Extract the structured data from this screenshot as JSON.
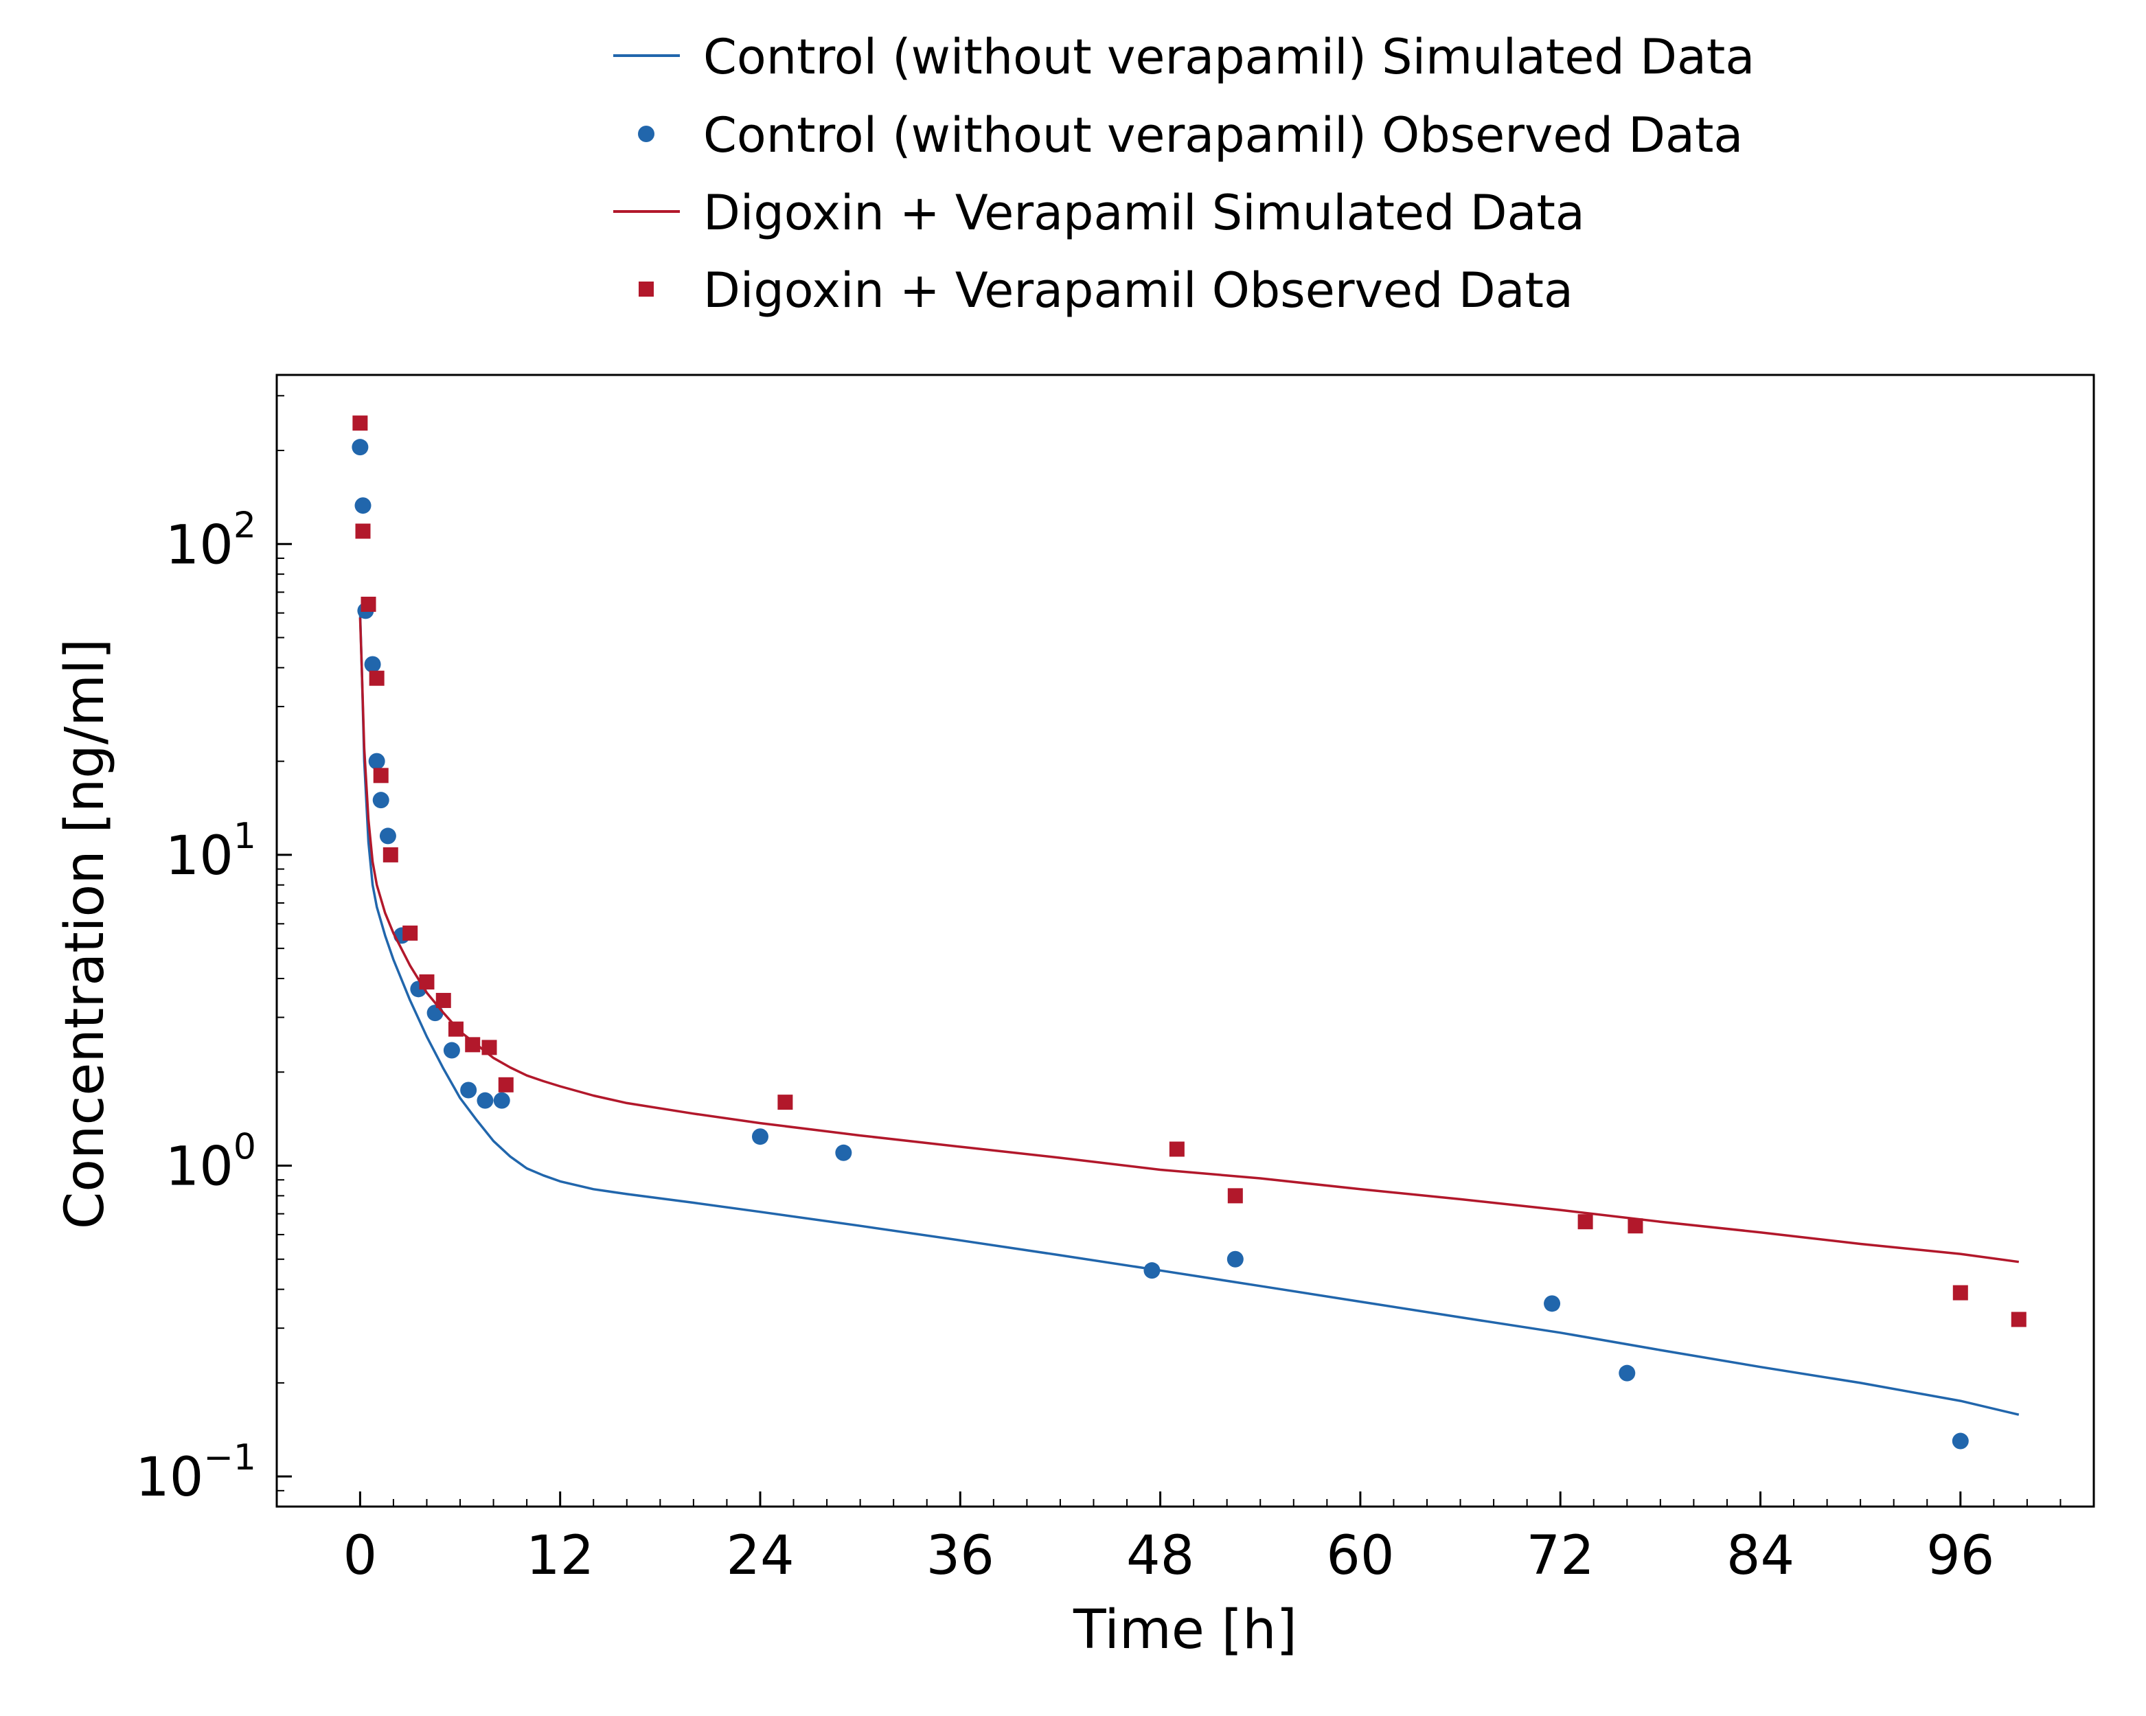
{
  "chart_data": {
    "type": "scatter",
    "xlabel": "Time [h]",
    "ylabel": "Concentration [ng/ml]",
    "xlim": [
      -5,
      104
    ],
    "ylim": [
      0.08,
      350
    ],
    "y_scale": "log",
    "x_ticks": [
      0,
      12,
      24,
      36,
      48,
      60,
      72,
      84,
      96
    ],
    "x_tick_labels": [
      "0",
      "12",
      "24",
      "36",
      "48",
      "60",
      "72",
      "84",
      "96"
    ],
    "y_ticks": [
      0.1,
      1,
      10,
      100
    ],
    "y_tick_labels": [
      {
        "base": "10",
        "exp": "−1"
      },
      {
        "base": "10",
        "exp": "0"
      },
      {
        "base": "10",
        "exp": "1"
      },
      {
        "base": "10",
        "exp": "2"
      }
    ],
    "grid": false,
    "legend_position": "top-center",
    "series": [
      {
        "name": "Control (without verapamil) Simulated Data",
        "kind": "line",
        "color": "#2166ac",
        "x": [
          0,
          0.1,
          0.25,
          0.5,
          0.75,
          1,
          1.5,
          2,
          3,
          4,
          5,
          6,
          7,
          8,
          9,
          10,
          11,
          12,
          14,
          16,
          20,
          24,
          30,
          36,
          42,
          48,
          54,
          60,
          66,
          72,
          78,
          84,
          90,
          96,
          99.5
        ],
        "y": [
          60,
          40,
          20,
          11,
          8.0,
          6.8,
          5.5,
          4.6,
          3.4,
          2.6,
          2.05,
          1.65,
          1.4,
          1.2,
          1.07,
          0.98,
          0.93,
          0.89,
          0.84,
          0.81,
          0.76,
          0.71,
          0.64,
          0.575,
          0.515,
          0.46,
          0.41,
          0.365,
          0.325,
          0.29,
          0.255,
          0.225,
          0.2,
          0.175,
          0.158
        ]
      },
      {
        "name": "Control (without verapamil) Observed Data",
        "kind": "marker",
        "marker": "circle",
        "color": "#2166ac",
        "x": [
          0,
          0.17,
          0.33,
          0.75,
          1.0,
          1.25,
          1.67,
          2.5,
          3.5,
          4.5,
          5.5,
          6.5,
          7.5,
          8.5,
          24,
          29,
          47.5,
          52.5,
          71.5,
          76,
          96
        ],
        "y": [
          205,
          133,
          61,
          41,
          20,
          15,
          11.5,
          5.5,
          3.7,
          3.1,
          2.35,
          1.75,
          1.62,
          1.62,
          1.24,
          1.1,
          0.46,
          0.5,
          0.36,
          0.215,
          0.13
        ]
      },
      {
        "name": "Digoxin + Verapamil Simulated Data",
        "kind": "line",
        "color": "#b2182b",
        "x": [
          0,
          0.1,
          0.25,
          0.5,
          0.75,
          1,
          1.5,
          2,
          3,
          4,
          5,
          6,
          7,
          8,
          9,
          10,
          11,
          12,
          14,
          16,
          20,
          24,
          30,
          36,
          42,
          48,
          54,
          60,
          66,
          72,
          78,
          84,
          90,
          96,
          99.5
        ],
        "y": [
          58,
          40,
          22,
          13,
          9.5,
          8.0,
          6.5,
          5.6,
          4.4,
          3.6,
          3.1,
          2.7,
          2.45,
          2.22,
          2.07,
          1.95,
          1.87,
          1.8,
          1.68,
          1.59,
          1.47,
          1.37,
          1.25,
          1.15,
          1.06,
          0.97,
          0.91,
          0.84,
          0.78,
          0.72,
          0.66,
          0.61,
          0.56,
          0.52,
          0.49
        ]
      },
      {
        "name": "Digoxin + Verapamil Observed Data",
        "kind": "marker",
        "marker": "square",
        "color": "#b2182b",
        "x": [
          0,
          0.17,
          0.5,
          1.0,
          1.25,
          1.83,
          3.0,
          4.0,
          5.0,
          5.75,
          6.75,
          7.75,
          8.75,
          25.5,
          49,
          52.5,
          73.5,
          76.5,
          96,
          99.5
        ],
        "y": [
          245,
          110,
          64,
          37,
          18,
          10,
          5.6,
          3.9,
          3.4,
          2.75,
          2.45,
          2.4,
          1.82,
          1.6,
          1.13,
          0.8,
          0.66,
          0.64,
          0.39,
          0.32
        ]
      }
    ]
  }
}
